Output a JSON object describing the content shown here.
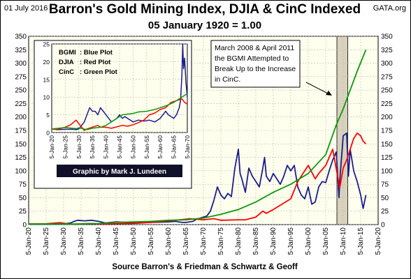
{
  "header": {
    "date": "01 July 2016",
    "site": "GATA.org",
    "title": "Barron's Gold Mining Index, DJIA & CinC Indexed",
    "subtitle": "05 January 1920 = 1.00",
    "source": "Source Barron's & Friedman & Schwartz & Geoff"
  },
  "annotation": {
    "lines": [
      "March 2008 & April 2011",
      "the BGMI Attempted to",
      "Break Up to the Increase",
      "in CinC."
    ]
  },
  "inset_legend": {
    "entries": [
      {
        "key": "BGMI",
        "label": ": Blue Plot"
      },
      {
        "key": "DJIA",
        "label": ": Red Plot"
      },
      {
        "key": "CinC",
        "label": ": Green Plot"
      }
    ]
  },
  "credit": "Graphic by Mark J. Lundeen",
  "colors": {
    "bgmi": "#1c1c8c",
    "djia": "#ff0000",
    "cinc": "#0a9a0a",
    "plot_bg": "#ffffee",
    "highlight": "#d8d2bc",
    "credit_bg": "#101028",
    "grid": "#b8b8b8"
  },
  "chart_data": [
    {
      "type": "line",
      "chart": "main",
      "x_tick_labels": [
        "5-Jan-20",
        "5-Jan-25",
        "5-Jan-30",
        "5-Jan-35",
        "5-Jan-40",
        "5-Jan-45",
        "5-Jan-50",
        "5-Jan-55",
        "5-Jan-60",
        "5-Jan-65",
        "5-Jan-70",
        "5-Jan-75",
        "5-Jan-80",
        "5-Jan-85",
        "5-Jan-90",
        "5-Jan-95",
        "5-Jan-00",
        "5-Jan-05",
        "5-Jan-10",
        "5-Jan-15",
        "5-Jan-20"
      ],
      "xlim": [
        1920,
        2020
      ],
      "ylim": [
        0,
        350
      ],
      "y_ticks": [
        0,
        25,
        50,
        75,
        100,
        125,
        150,
        175,
        200,
        225,
        250,
        275,
        300,
        325,
        350
      ],
      "y_ticks_right": true,
      "grid": true,
      "highlight_band": [
        2008.2,
        2011.3
      ],
      "series": [
        {
          "name": "BGMI",
          "x": [
            1920,
            1925,
            1930,
            1932,
            1933,
            1934,
            1936,
            1938,
            1940,
            1942,
            1945,
            1948,
            1950,
            1955,
            1960,
            1962,
            1964,
            1965,
            1967,
            1968,
            1970,
            1971,
            1972,
            1973,
            1974,
            1975,
            1976,
            1977,
            1978,
            1979,
            1980,
            1980.5,
            1981,
            1982,
            1983,
            1984,
            1985,
            1986,
            1987,
            1987.5,
            1988,
            1989,
            1990,
            1991,
            1992,
            1993,
            1994,
            1995,
            1996,
            1997,
            1998,
            1999,
            2000,
            2001,
            2002,
            2003,
            2004,
            2005,
            2006,
            2007,
            2008,
            2008.8,
            2009,
            2010,
            2011,
            2011.5,
            2012,
            2013,
            2014,
            2015,
            2015.7,
            2016.5
          ],
          "y": [
            1,
            0.8,
            1,
            3,
            6,
            8,
            7,
            8,
            6,
            3,
            5,
            4,
            3,
            4,
            5,
            6,
            4,
            4,
            6,
            10,
            14,
            16,
            25,
            45,
            70,
            55,
            48,
            58,
            52,
            105,
            140,
            95,
            85,
            60,
            105,
            90,
            80,
            70,
            105,
            125,
            90,
            80,
            95,
            85,
            75,
            90,
            110,
            100,
            110,
            70,
            55,
            48,
            70,
            38,
            42,
            70,
            80,
            78,
            100,
            120,
            135,
            50,
            80,
            165,
            170,
            90,
            140,
            100,
            80,
            55,
            30,
            55
          ]
        },
        {
          "name": "DJIA",
          "x": [
            1920,
            1925,
            1929,
            1932,
            1937,
            1942,
            1946,
            1950,
            1955,
            1960,
            1965,
            1966,
            1970,
            1973,
            1975,
            1980,
            1982,
            1985,
            1987,
            1988,
            1990,
            1995,
            1997,
            2000,
            2002,
            2003,
            2005,
            2007,
            2009,
            2010,
            2011,
            2013,
            2014,
            2015,
            2015.7,
            2016.5
          ],
          "y": [
            1,
            1.5,
            3.5,
            0.6,
            2,
            1.2,
            2,
            2.2,
            4,
            7,
            10,
            11,
            9,
            11,
            8,
            9,
            9,
            14,
            25,
            21,
            28,
            48,
            80,
            110,
            85,
            95,
            110,
            140,
            68,
            105,
            120,
            160,
            170,
            165,
            155,
            150
          ]
        },
        {
          "name": "CinC",
          "x": [
            1920,
            1930,
            1935,
            1940,
            1945,
            1950,
            1955,
            1960,
            1965,
            1970,
            1975,
            1980,
            1985,
            1990,
            1995,
            2000,
            2005,
            2008,
            2010,
            2012,
            2014,
            2016.5
          ],
          "y": [
            1,
            1,
            1.2,
            2,
            4,
            5,
            6,
            8,
            9,
            12,
            19,
            28,
            42,
            60,
            75,
            95,
            130,
            185,
            215,
            250,
            285,
            325
          ]
        }
      ]
    },
    {
      "type": "line",
      "chart": "inset",
      "x_tick_labels": [
        "5-Jan-20",
        "5-Jan-25",
        "5-Jan-30",
        "5-Jan-35",
        "5-Jan-40",
        "5-Jan-45",
        "5-Jan-50",
        "5-Jan-55",
        "5-Jan-60",
        "5-Jan-65",
        "5-Jan-70"
      ],
      "xlim": [
        1920,
        1970
      ],
      "ylim": [
        0,
        25
      ],
      "y_ticks": [
        0,
        5,
        10,
        15,
        20,
        25
      ],
      "grid": true,
      "series": [
        {
          "name": "BGMI",
          "x": [
            1920,
            1922,
            1925,
            1928,
            1929,
            1930,
            1931,
            1932,
            1933,
            1934,
            1935,
            1936,
            1937,
            1938,
            1939,
            1940,
            1941,
            1942,
            1943,
            1944,
            1945,
            1946,
            1947,
            1948,
            1950,
            1952,
            1954,
            1956,
            1958,
            1960,
            1961,
            1962,
            1963,
            1964,
            1965,
            1966,
            1967,
            1967.5,
            1968,
            1968.3,
            1968.6,
            1969,
            1969.5,
            1970
          ],
          "y": [
            1,
            0.8,
            0.9,
            0.9,
            0.8,
            1,
            2,
            3,
            5,
            7,
            6,
            6,
            5,
            7,
            6,
            5,
            4,
            3,
            3.5,
            4,
            5,
            4,
            4.5,
            4,
            3,
            3.5,
            3.2,
            3.5,
            3,
            4,
            5,
            6,
            5,
            4.5,
            4,
            5,
            7,
            9,
            16,
            25,
            18,
            21,
            14,
            10
          ]
        },
        {
          "name": "DJIA",
          "x": [
            1920,
            1922,
            1925,
            1927,
            1929,
            1930,
            1932,
            1933,
            1935,
            1937,
            1938,
            1940,
            1942,
            1944,
            1946,
            1948,
            1950,
            1952,
            1954,
            1956,
            1958,
            1960,
            1962,
            1964,
            1966,
            1968,
            1969,
            1970
          ],
          "y": [
            1,
            0.9,
            1.5,
            2.2,
            3.5,
            2.5,
            0.6,
            1,
            1.5,
            2,
            1.5,
            1.5,
            1.2,
            1.6,
            2,
            1.8,
            2.2,
            2.8,
            3.5,
            5,
            5.5,
            6.5,
            7,
            8.5,
            9,
            9.5,
            8.5,
            8
          ]
        },
        {
          "name": "CinC",
          "x": [
            1920,
            1925,
            1929,
            1930,
            1933,
            1935,
            1938,
            1940,
            1942,
            1945,
            1946,
            1948,
            1950,
            1952,
            1955,
            1958,
            1960,
            1962,
            1965,
            1968,
            1970
          ],
          "y": [
            1,
            1.4,
            1.1,
            1.3,
            0.8,
            1.2,
            1.5,
            2,
            3,
            4.5,
            5,
            5.2,
            5.4,
            5.8,
            6,
            6.5,
            7,
            7.5,
            8.5,
            10,
            11
          ]
        }
      ]
    }
  ]
}
